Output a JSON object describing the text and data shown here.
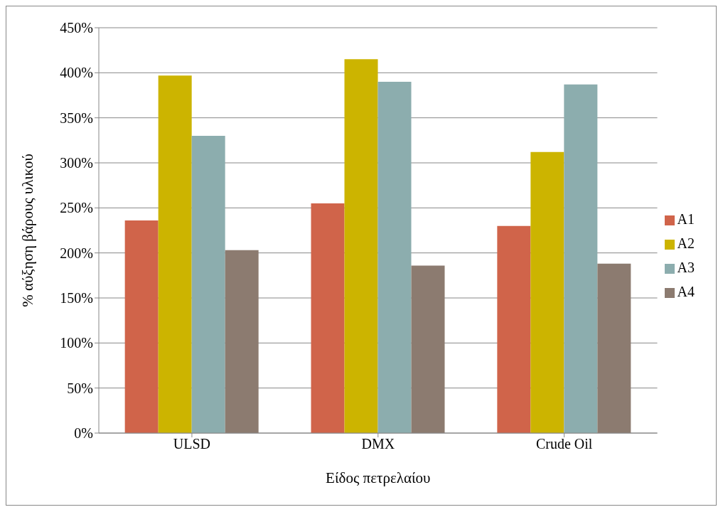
{
  "chart_data": {
    "type": "bar",
    "xlabel": "Είδος πετρελαίου",
    "ylabel": "% αύξηση βάρους υλικού",
    "categories": [
      "ULSD",
      "DMX",
      "Crude Oil"
    ],
    "series": [
      {
        "name": "A1",
        "color": "#d0644a",
        "values": [
          236,
          255,
          230
        ]
      },
      {
        "name": "A2",
        "color": "#ccb400",
        "values": [
          397,
          415,
          312
        ]
      },
      {
        "name": "A3",
        "color": "#8cadae",
        "values": [
          330,
          390,
          387
        ]
      },
      {
        "name": "A4",
        "color": "#8c7b70",
        "values": [
          203,
          186,
          188
        ]
      }
    ],
    "ylim": [
      0,
      450
    ],
    "yticks": [
      {
        "value": 0,
        "label": "0%"
      },
      {
        "value": 50,
        "label": "50%"
      },
      {
        "value": 100,
        "label": "100%"
      },
      {
        "value": 150,
        "label": "150%"
      },
      {
        "value": 200,
        "label": "200%"
      },
      {
        "value": 250,
        "label": "250%"
      },
      {
        "value": 300,
        "label": "300%"
      },
      {
        "value": 350,
        "label": "350%"
      },
      {
        "value": 400,
        "label": "400%"
      },
      {
        "value": 450,
        "label": "450%"
      }
    ],
    "grid": "y",
    "legend": "right"
  }
}
